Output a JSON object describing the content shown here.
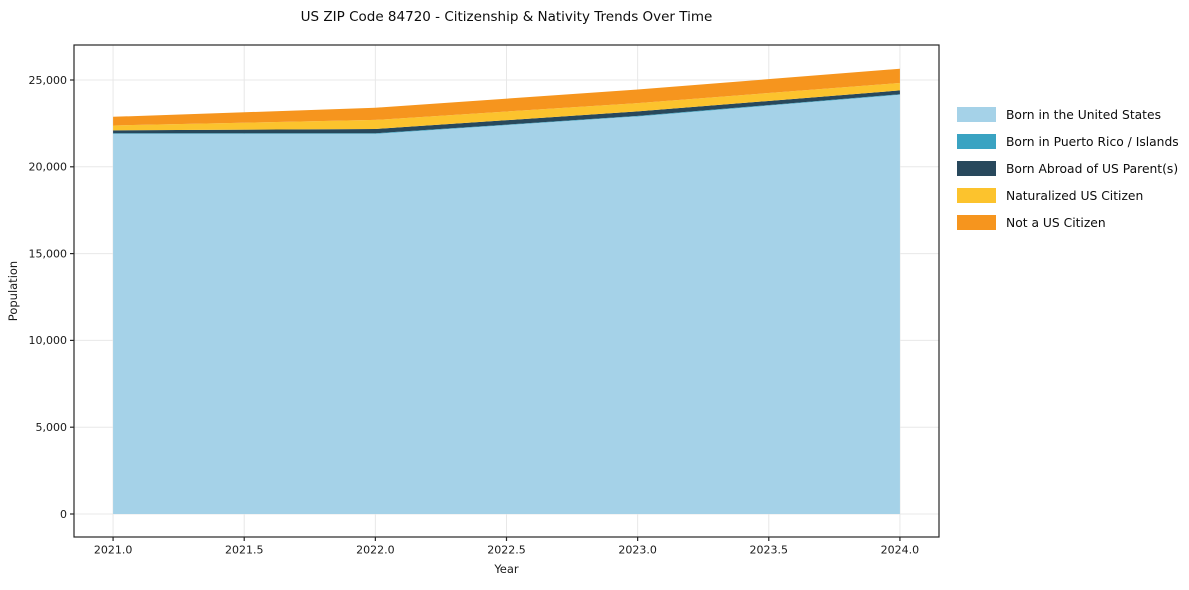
{
  "title": "US ZIP Code 84720 - Citizenship & Nativity Trends Over Time",
  "axes": {
    "x_label": "Year",
    "y_label": "Population",
    "x_ticks": [
      {
        "value": 2021.0,
        "label": "2021.0"
      },
      {
        "value": 2021.5,
        "label": "2021.5"
      },
      {
        "value": 2022.0,
        "label": "2022.0"
      },
      {
        "value": 2022.5,
        "label": "2022.5"
      },
      {
        "value": 2023.0,
        "label": "2023.0"
      },
      {
        "value": 2023.5,
        "label": "2023.5"
      },
      {
        "value": 2024.0,
        "label": "2024.0"
      }
    ],
    "y_ticks": [
      {
        "value": 0,
        "label": "0"
      },
      {
        "value": 5000,
        "label": "5,000"
      },
      {
        "value": 10000,
        "label": "10,000"
      },
      {
        "value": 15000,
        "label": "15,000"
      },
      {
        "value": 20000,
        "label": "20,000"
      },
      {
        "value": 25000,
        "label": "25,000"
      }
    ]
  },
  "chart_data": {
    "type": "area",
    "stacked": true,
    "title": "US ZIP Code 84720 - Citizenship & Nativity Trends Over Time",
    "xlabel": "Year",
    "ylabel": "Population",
    "x": [
      2021,
      2022,
      2023,
      2024
    ],
    "series": [
      {
        "key": "born-us",
        "name": "Born in the United States",
        "color": "#A5D2E8",
        "values": [
          21900,
          21900,
          22900,
          24150
        ]
      },
      {
        "key": "puerto-rico",
        "name": "Born in Puerto Rico / Islands",
        "color": "#3AA3C2",
        "values": [
          30,
          30,
          30,
          30
        ]
      },
      {
        "key": "born-abroad",
        "name": "Born Abroad of US Parent(s)",
        "color": "#28485C",
        "values": [
          170,
          250,
          260,
          220
        ]
      },
      {
        "key": "naturalized",
        "name": "Naturalized US Citizen",
        "color": "#FCC32D",
        "values": [
          280,
          520,
          480,
          430
        ]
      },
      {
        "key": "not-citizen",
        "name": "Not a US Citizen",
        "color": "#F6951E",
        "values": [
          500,
          700,
          780,
          820
        ]
      }
    ],
    "totals": [
      22880,
      23400,
      24450,
      25650
    ],
    "xlim": [
      2020.851,
      2024.149
    ],
    "ylim": [
      -1325,
      27016
    ],
    "grid": true,
    "legend_position": "right"
  },
  "colors": {
    "plot_bg": "#ffffff",
    "grid": "#e8e8e8",
    "spine": "#262626",
    "text": "#1a1a1a"
  }
}
